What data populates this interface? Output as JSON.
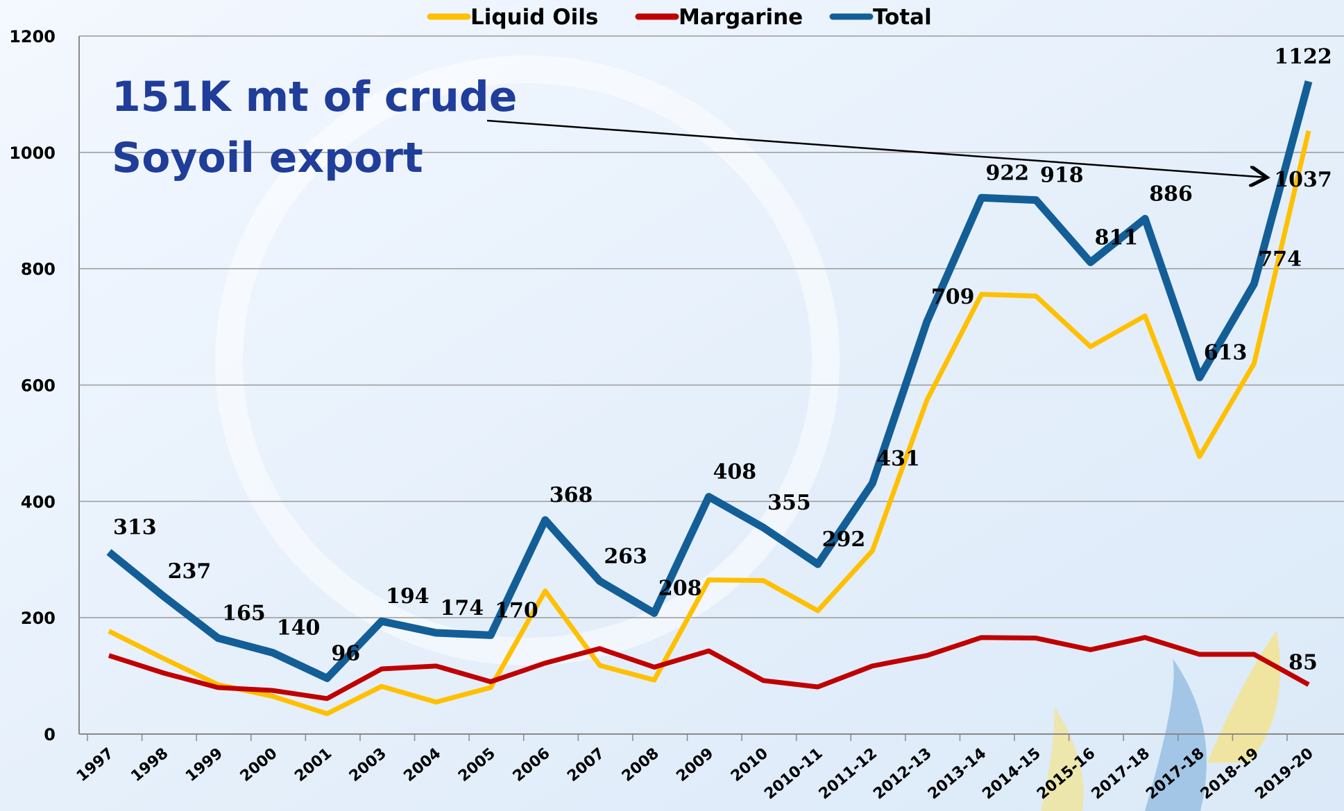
{
  "chart_data": {
    "type": "line",
    "categories": [
      "1997",
      "1998",
      "1999",
      "2000",
      "2001",
      "2003",
      "2004",
      "2005",
      "2006",
      "2007",
      "2008",
      "2009",
      "2010",
      "2010-11",
      "2011-12",
      "2012-13",
      "2013-14",
      "2014-15",
      "2015-16",
      "2017-18",
      "2017-18",
      "2018-19",
      "2019-20"
    ],
    "series": [
      {
        "name": "Liquid Oils",
        "color": "#ffc000",
        "labels": "last",
        "values": [
          177,
          130,
          85,
          65,
          35,
          82,
          55,
          80,
          246,
          118,
          93,
          265,
          264,
          212,
          315,
          574,
          756,
          753,
          666,
          719,
          477,
          637,
          1037
        ]
      },
      {
        "name": "Margarine",
        "color": "#c00000",
        "labels": "last",
        "values": [
          135,
          105,
          80,
          75,
          61,
          112,
          117,
          90,
          122,
          147,
          115,
          143,
          92,
          81,
          117,
          135,
          166,
          165,
          145,
          166,
          137,
          137,
          85
        ]
      },
      {
        "name": "Total",
        "color": "#135e96",
        "labels": "all",
        "values": [
          313,
          237,
          165,
          140,
          96,
          194,
          174,
          170,
          368,
          263,
          208,
          408,
          355,
          292,
          431,
          709,
          922,
          918,
          811,
          886,
          613,
          774,
          1122
        ]
      }
    ],
    "annotation": [
      "151K mt of crude",
      "Soyoil export"
    ],
    "ylim": [
      0,
      1200
    ],
    "yticks": [
      0,
      200,
      400,
      600,
      800,
      1000,
      1200
    ],
    "grid": true,
    "legend": "top"
  }
}
